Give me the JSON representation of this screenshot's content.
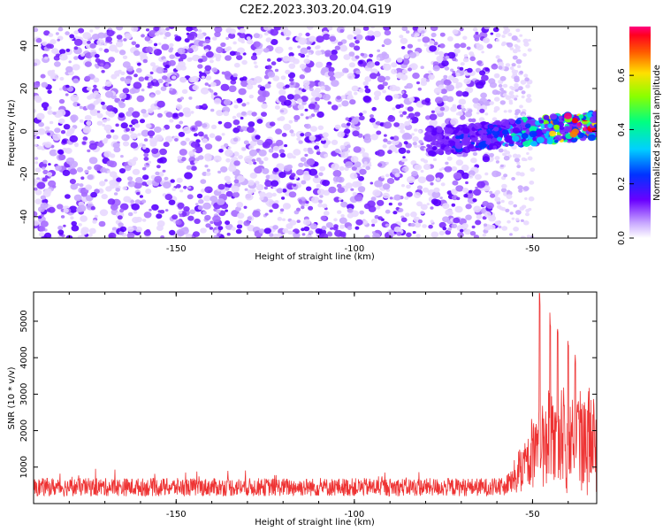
{
  "title": "C2E2.2023.303.20.04.G19",
  "colors": {
    "scatter_palette": [
      "#e8d8ff",
      "#c9a9ff",
      "#a66bff",
      "#7d2cff",
      "#5a00ff",
      "#0033ff",
      "#00c8ff",
      "#00ff9c",
      "#7dff00",
      "#ffe000",
      "#ff7a00",
      "#ff0000",
      "#ff0080"
    ],
    "snr_line": "#ee3333"
  },
  "chart_data": [
    {
      "type": "scatter",
      "name": "spectrogram",
      "xlabel": "Height of straight line (km)",
      "ylabel": "Frequency (Hz)",
      "xlim": [
        -190,
        -32
      ],
      "ylim": [
        -50,
        49
      ],
      "xticks": [
        -150,
        -100,
        -50
      ],
      "yticks": [
        -40,
        -20,
        0,
        20,
        40
      ],
      "grid": false,
      "colorbar": {
        "label": "Normalized spectral amplitude",
        "range": [
          0,
          0.78
        ],
        "ticks": [
          "0.0",
          "0.2",
          "0.4",
          "0.6"
        ],
        "colormap": "rainbow"
      },
      "regions": [
        {
          "x": [
            -190,
            -60
          ],
          "y": [
            -50,
            49
          ],
          "amplitude": "low (0.0-0.15)",
          "density": "dense"
        },
        {
          "x": [
            -60,
            -50
          ],
          "y": [
            -50,
            49
          ],
          "amplitude": "very low (0.0-0.05)",
          "density": "sparse"
        },
        {
          "x": [
            -80,
            -32
          ],
          "y_center_start": -5,
          "y_center_end": 3,
          "halfwidth_hz": 6,
          "amplitude": "high (0.2-0.78)",
          "density": "dense"
        }
      ]
    },
    {
      "type": "line",
      "name": "snr",
      "xlabel": "Height of straight line (km)",
      "ylabel": "SNR (10 * v/v)",
      "xlim": [
        -190,
        -32
      ],
      "ylim": [
        0,
        5800
      ],
      "xticks": [
        -150,
        -100,
        -50
      ],
      "yticks": [
        1000,
        2000,
        3000,
        4000,
        5000
      ],
      "grid": false,
      "summary": {
        "baseline_range": [
          200,
          700
        ],
        "rise_start_km": -58,
        "peaks": [
          {
            "x": -48,
            "y": 5800
          },
          {
            "x": -45,
            "y": 5350
          },
          {
            "x": -43,
            "y": 4900
          },
          {
            "x": -40,
            "y": 4500
          },
          {
            "x": -38,
            "y": 4200
          }
        ]
      }
    }
  ]
}
